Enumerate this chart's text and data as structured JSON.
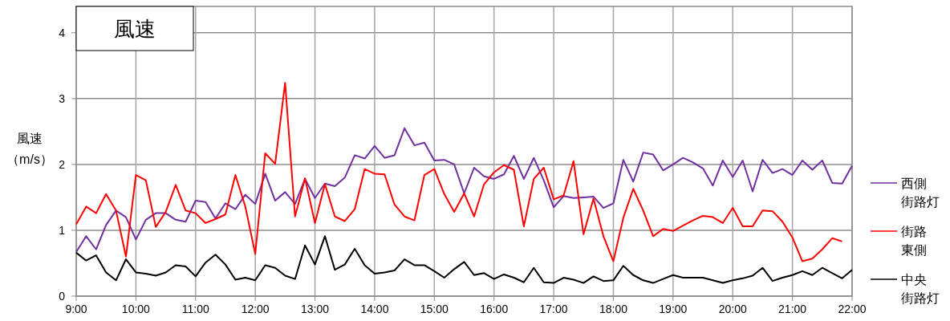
{
  "chart_data": {
    "type": "line",
    "title": "風速",
    "ylabel": "風速（m/s）",
    "x": [
      9,
      9.1667,
      9.3333,
      9.5,
      9.6667,
      9.8333,
      10,
      10.1667,
      10.3333,
      10.5,
      10.6667,
      10.8333,
      11,
      11.1667,
      11.3333,
      11.5,
      11.6667,
      11.8333,
      12,
      12.1667,
      12.3333,
      12.5,
      12.6667,
      12.8333,
      13,
      13.1667,
      13.3333,
      13.5,
      13.6667,
      13.8333,
      14,
      14.1667,
      14.3333,
      14.5,
      14.6667,
      14.8333,
      15,
      15.1667,
      15.3333,
      15.5,
      15.6667,
      15.8333,
      16,
      16.1667,
      16.3333,
      16.5,
      16.6667,
      16.8333,
      17,
      17.1667,
      17.3333,
      17.5,
      17.6667,
      17.8333,
      18,
      18.1667,
      18.3333,
      18.5,
      18.6667,
      18.8333,
      19,
      19.1667,
      19.3333,
      19.5,
      19.6667,
      19.8333,
      20,
      20.1667,
      20.3333,
      20.5,
      20.6667,
      20.8333,
      21,
      21.1667,
      21.3333,
      21.5,
      21.6667,
      21.8333,
      22
    ],
    "series": [
      {
        "name": "西側街路灯",
        "color": "#7030a0",
        "values": [
          0.67,
          0.91,
          0.71,
          1.08,
          1.3,
          1.2,
          0.86,
          1.16,
          1.26,
          1.26,
          1.16,
          1.13,
          1.45,
          1.43,
          1.18,
          1.41,
          1.32,
          1.54,
          1.4,
          1.86,
          1.45,
          1.58,
          1.4,
          1.78,
          1.49,
          1.71,
          1.67,
          1.8,
          2.14,
          2.09,
          2.28,
          2.1,
          2.14,
          2.55,
          2.29,
          2.33,
          2.06,
          2.07,
          2.0,
          1.56,
          1.95,
          1.82,
          1.78,
          1.85,
          2.13,
          1.78,
          2.1,
          1.76,
          1.35,
          1.52,
          1.49,
          1.5,
          1.51,
          1.34,
          1.41,
          2.07,
          1.74,
          2.18,
          2.15,
          1.91,
          2.0,
          2.1,
          2.03,
          1.94,
          1.68,
          2.06,
          1.81,
          2.06,
          1.59,
          2.07,
          1.87,
          1.93,
          1.84,
          2.06,
          1.92,
          2.06,
          1.72,
          1.71,
          1.98
        ]
      },
      {
        "name": "街路東側",
        "color": "#ff0000",
        "values": [
          1.09,
          1.36,
          1.26,
          1.55,
          1.3,
          0.6,
          1.84,
          1.76,
          1.05,
          1.28,
          1.69,
          1.3,
          1.26,
          1.11,
          1.17,
          1.24,
          1.84,
          1.36,
          0.64,
          2.17,
          2.01,
          3.24,
          1.21,
          1.79,
          1.11,
          1.7,
          1.21,
          1.14,
          1.32,
          1.93,
          1.86,
          1.85,
          1.39,
          1.21,
          1.15,
          1.84,
          1.93,
          1.55,
          1.28,
          1.56,
          1.21,
          1.7,
          1.88,
          1.99,
          1.92,
          1.06,
          1.78,
          1.95,
          1.47,
          1.53,
          2.05,
          0.94,
          1.48,
          0.91,
          0.53,
          1.19,
          1.63,
          1.3,
          0.91,
          1.02,
          0.99,
          1.07,
          1.15,
          1.22,
          1.2,
          1.11,
          1.34,
          1.06,
          1.06,
          1.3,
          1.29,
          1.13,
          0.89,
          0.53,
          0.57,
          0.71,
          0.88,
          0.83,
          null
        ]
      },
      {
        "name": "中央街路灯",
        "color": "#000000",
        "values": [
          0.66,
          0.54,
          0.62,
          0.36,
          0.24,
          0.56,
          0.36,
          0.34,
          0.31,
          0.36,
          0.47,
          0.45,
          0.3,
          0.51,
          0.63,
          0.48,
          0.25,
          0.28,
          0.24,
          0.47,
          0.43,
          0.31,
          0.26,
          0.77,
          0.48,
          0.91,
          0.4,
          0.48,
          0.72,
          0.47,
          0.34,
          0.36,
          0.39,
          0.56,
          0.47,
          0.47,
          0.38,
          0.28,
          0.41,
          0.52,
          0.32,
          0.35,
          0.26,
          0.33,
          0.28,
          0.21,
          0.43,
          0.21,
          0.2,
          0.28,
          0.25,
          0.2,
          0.3,
          0.23,
          0.24,
          0.46,
          0.32,
          0.24,
          0.2,
          0.26,
          0.32,
          0.28,
          0.28,
          0.28,
          0.24,
          0.2,
          0.24,
          0.27,
          0.31,
          0.43,
          0.23,
          0.28,
          0.32,
          0.38,
          0.32,
          0.43,
          0.35,
          0.27,
          0.4
        ]
      }
    ],
    "xlim": [
      9,
      22
    ],
    "xticks": [
      {
        "value": 9,
        "label": "9:00"
      },
      {
        "value": 10,
        "label": "10:00"
      },
      {
        "value": 11,
        "label": "11:00"
      },
      {
        "value": 12,
        "label": "12:00"
      },
      {
        "value": 13,
        "label": "13:00"
      },
      {
        "value": 14,
        "label": "14:00"
      },
      {
        "value": 15,
        "label": "15:00"
      },
      {
        "value": 16,
        "label": "16:00"
      },
      {
        "value": 17,
        "label": "17:00"
      },
      {
        "value": 18,
        "label": "18:00"
      },
      {
        "value": 19,
        "label": "19:00"
      },
      {
        "value": 20,
        "label": "20:00"
      },
      {
        "value": 21,
        "label": "21:00"
      },
      {
        "value": 22,
        "label": "22:00"
      }
    ],
    "ylim": [
      0,
      4.4
    ],
    "yticks": [
      0,
      1,
      2,
      3,
      4
    ],
    "grid": true,
    "legend": "right",
    "marker": "none",
    "line_style": "solid"
  }
}
